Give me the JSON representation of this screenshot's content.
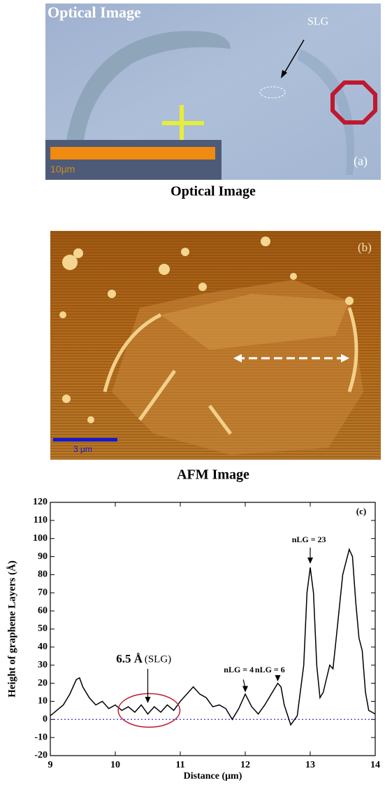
{
  "optical": {
    "overlay_title": "Optical Image",
    "marker": "SLG",
    "panel": "(a)",
    "scale": "10μm",
    "caption": "Optical Image"
  },
  "afm": {
    "panel": "(b)",
    "scale": "3 μm",
    "caption": "AFM Image"
  },
  "chart_data": {
    "type": "line",
    "panel": "(c)",
    "x_label": "Distance (μm)",
    "y_label": "Height of graphene Layers (Å)",
    "annotations": [
      "6.5 Å",
      "(SLG)",
      "nLG = 4",
      "nLG = 6",
      "nLG = 23"
    ],
    "x": [
      9.0,
      9.1,
      9.2,
      9.3,
      9.4,
      9.45,
      9.5,
      9.6,
      9.7,
      9.8,
      9.9,
      10.0,
      10.1,
      10.2,
      10.3,
      10.4,
      10.5,
      10.6,
      10.7,
      10.8,
      10.9,
      11.0,
      11.1,
      11.2,
      11.3,
      11.4,
      11.5,
      11.6,
      11.7,
      11.8,
      11.9,
      12.0,
      12.1,
      12.2,
      12.3,
      12.4,
      12.5,
      12.55,
      12.6,
      12.7,
      12.8,
      12.9,
      12.95,
      13.0,
      13.05,
      13.1,
      13.15,
      13.2,
      13.3,
      13.35,
      13.4,
      13.5,
      13.6,
      13.65,
      13.7,
      13.75,
      13.8,
      13.85,
      13.9,
      14.0
    ],
    "values": [
      2,
      5,
      8,
      14,
      22,
      23,
      18,
      12,
      8,
      10,
      6,
      8,
      5,
      7,
      4,
      8,
      3,
      7,
      4,
      8,
      5,
      10,
      14,
      18,
      14,
      12,
      7,
      8,
      6,
      0,
      6,
      14,
      7,
      3,
      8,
      14,
      20,
      18,
      8,
      -3,
      2,
      30,
      70,
      84,
      70,
      30,
      12,
      15,
      30,
      28,
      45,
      80,
      94,
      90,
      65,
      45,
      38,
      15,
      5,
      3
    ],
    "color": "#000000",
    "hline": 0,
    "hline_color": "#3333cc",
    "xlim": [
      9,
      14
    ],
    "xticks": [
      9,
      10,
      11,
      12,
      13,
      14
    ],
    "ylim": [
      -20,
      120
    ],
    "yticks": [
      -20,
      -10,
      0,
      10,
      20,
      30,
      40,
      50,
      60,
      70,
      80,
      90,
      100,
      110,
      120
    ]
  }
}
